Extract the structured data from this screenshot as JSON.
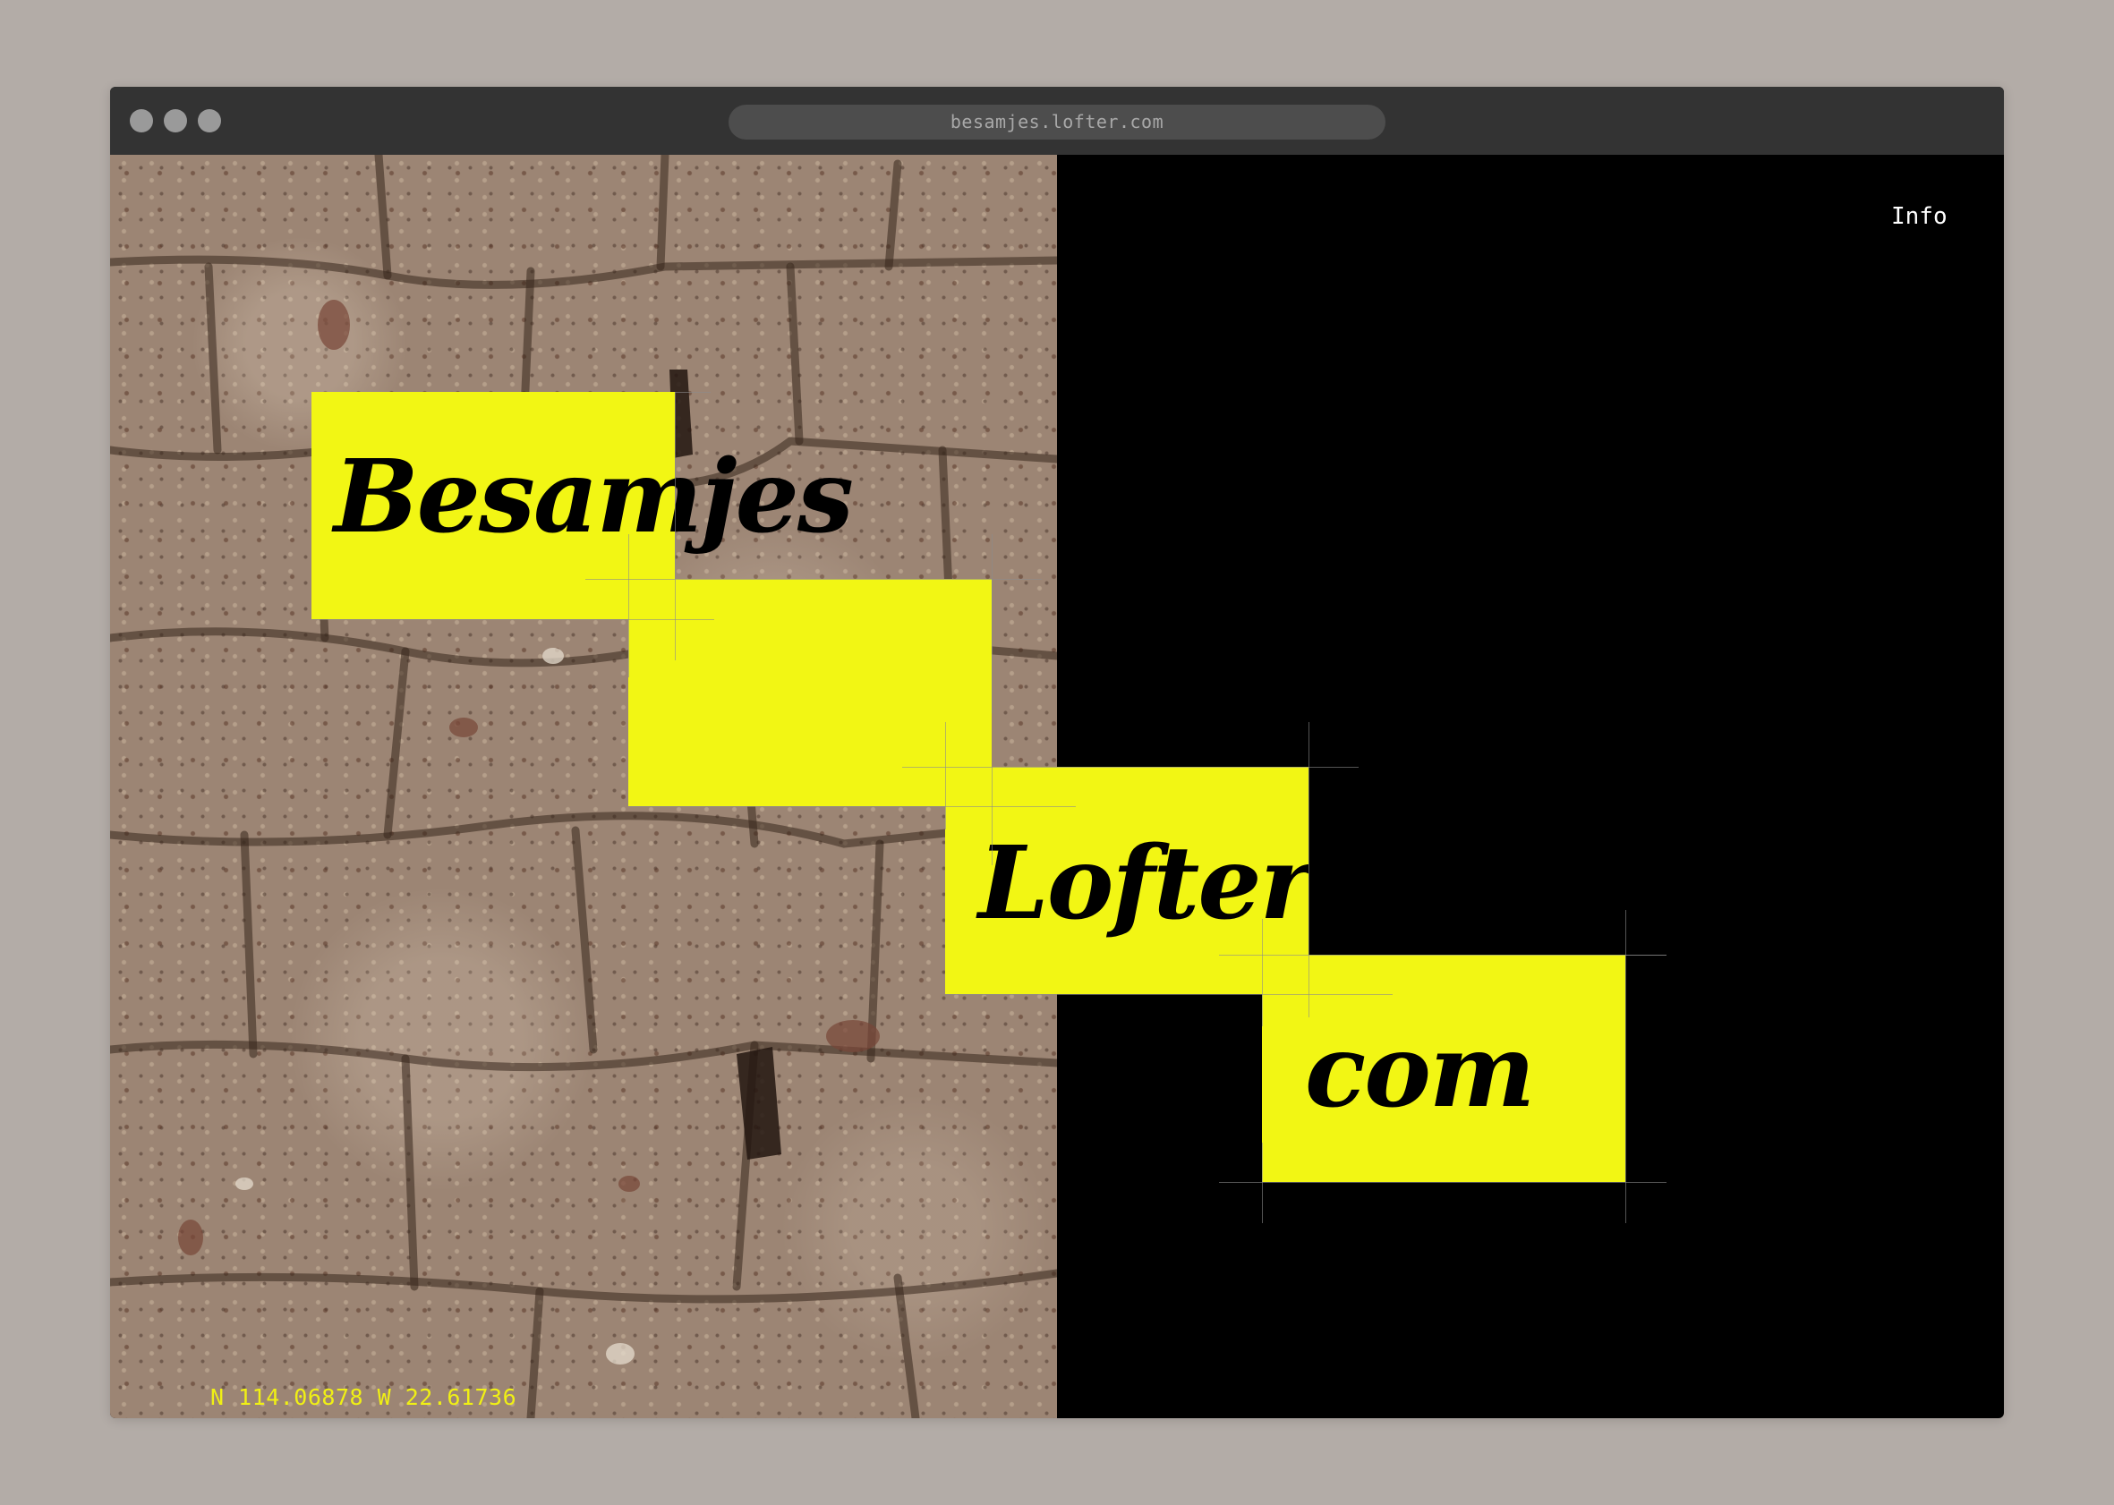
{
  "browser": {
    "url": "besamjes.lofter.com",
    "window_dots": [
      "close-dot",
      "minimize-dot",
      "maximize-dot"
    ]
  },
  "nav": {
    "info_label": "Info"
  },
  "hero": {
    "words": [
      "Besamjes",
      "Lofter",
      "com"
    ],
    "accent_color": "#f2f614",
    "background_color": "#000000"
  },
  "photo": {
    "subject": "stone-wall",
    "coordinates": "N 114.06878 W 22.61736"
  }
}
